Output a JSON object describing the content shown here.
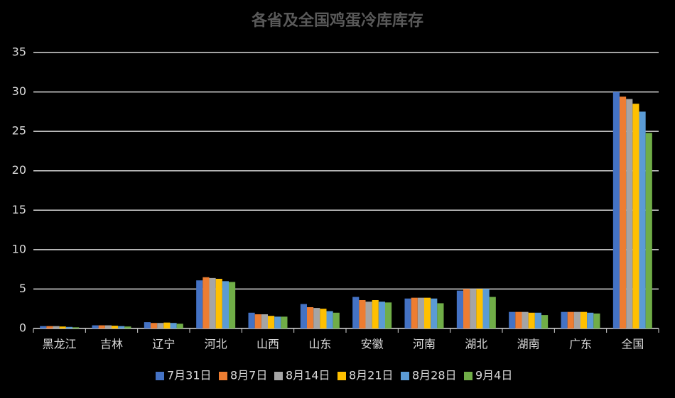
{
  "chart_data": {
    "type": "bar",
    "title": "各省及全国鸡蛋冷库库存",
    "categories": [
      "黑龙江",
      "吉林",
      "辽宁",
      "河北",
      "山西",
      "山东",
      "安徽",
      "河南",
      "湖北",
      "湖南",
      "广东",
      "全国"
    ],
    "series": [
      {
        "name": "7月31日",
        "color": "#4472c4",
        "values": [
          0.3,
          0.4,
          0.8,
          6.1,
          2.0,
          3.1,
          4.0,
          3.8,
          4.8,
          2.1,
          2.1,
          30.0
        ]
      },
      {
        "name": "8月7日",
        "color": "#ed7d31",
        "values": [
          0.3,
          0.4,
          0.7,
          6.5,
          1.8,
          2.7,
          3.6,
          3.9,
          5.0,
          2.1,
          2.1,
          29.4
        ]
      },
      {
        "name": "8月14日",
        "color": "#a5a5a5",
        "values": [
          0.3,
          0.4,
          0.7,
          6.4,
          1.8,
          2.6,
          3.4,
          3.9,
          5.0,
          2.1,
          2.1,
          29.1
        ]
      },
      {
        "name": "8月21日",
        "color": "#ffc000",
        "values": [
          0.25,
          0.35,
          0.75,
          6.3,
          1.6,
          2.5,
          3.6,
          3.9,
          5.0,
          2.0,
          2.1,
          28.5
        ]
      },
      {
        "name": "8月28日",
        "color": "#5b9bd5",
        "values": [
          0.2,
          0.3,
          0.7,
          6.0,
          1.5,
          2.2,
          3.4,
          3.8,
          5.0,
          2.0,
          2.0,
          27.5
        ]
      },
      {
        "name": "9月4日",
        "color": "#70ad47",
        "values": [
          0.15,
          0.25,
          0.6,
          5.9,
          1.5,
          2.0,
          3.3,
          3.2,
          4.0,
          1.7,
          1.9,
          24.8
        ]
      }
    ],
    "ylim": [
      0,
      35
    ],
    "yticks": [
      0,
      5,
      10,
      15,
      20,
      25,
      30,
      35
    ],
    "grid": true,
    "legend": "bottom"
  }
}
